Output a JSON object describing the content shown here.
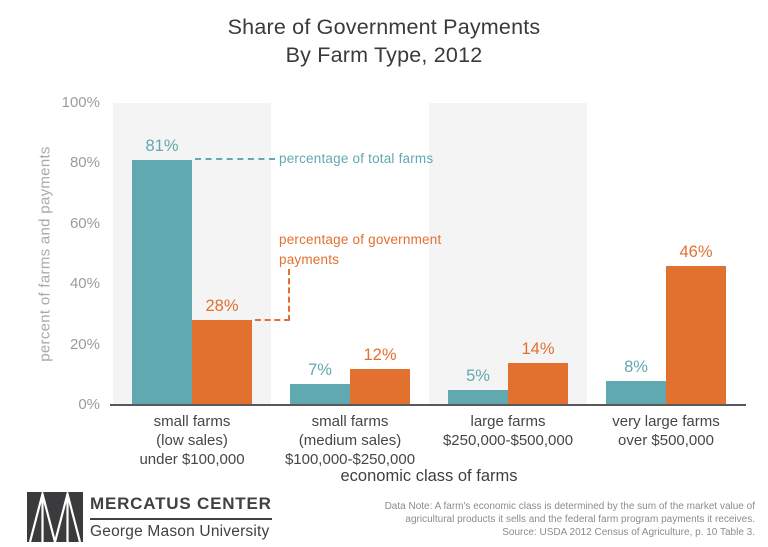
{
  "title": {
    "line1": "Share of Government Payments",
    "line2": "By Farm Type, 2012"
  },
  "y_axis": {
    "label": "percent of farms and payments",
    "ticks": [
      "0%",
      "20%",
      "40%",
      "60%",
      "80%",
      "100%"
    ]
  },
  "x_axis": {
    "label": "economic class of farms"
  },
  "annotations": {
    "total_farms": "percentage of total farms",
    "govt_payments": "percentage of government payments"
  },
  "chart_data": {
    "type": "bar",
    "title": "Share of Government Payments By Farm Type, 2012",
    "xlabel": "economic class of farms",
    "ylabel": "percent of farms and payments",
    "ylim": [
      0,
      100
    ],
    "grid": false,
    "legend_position": "inline-annotations",
    "categories": [
      [
        "small farms",
        "(low sales)",
        "under $100,000"
      ],
      [
        "small farms",
        "(medium sales)",
        "$100,000-$250,000"
      ],
      [
        "large farms",
        "$250,000-$500,000"
      ],
      [
        "very large farms",
        "over $500,000"
      ]
    ],
    "series": [
      {
        "name": "percentage of total farms",
        "color": "#61a9b1",
        "values": [
          81,
          7,
          5,
          8
        ]
      },
      {
        "name": "percentage of government payments",
        "color": "#e2702f",
        "values": [
          28,
          12,
          14,
          46
        ]
      }
    ],
    "value_label_suffix": "%"
  },
  "footer": {
    "brand_name": "MERCATUS CENTER",
    "brand_sub": "George Mason University",
    "note_lines": [
      "Data Note: A farm's economic class is determined by the sum of the market value of",
      "agricultural products it sells and the federal farm program payments it receives.",
      "Source: USDA 2012 Census of Agriculture, p. 10 Table 3."
    ]
  },
  "colors": {
    "teal": "#61a9b1",
    "orange": "#e2702f",
    "stripe": "#f4f4f4",
    "axis_line": "#58595b",
    "title_text": "#3a3a3a",
    "tick_text": "#9b9b9b"
  }
}
